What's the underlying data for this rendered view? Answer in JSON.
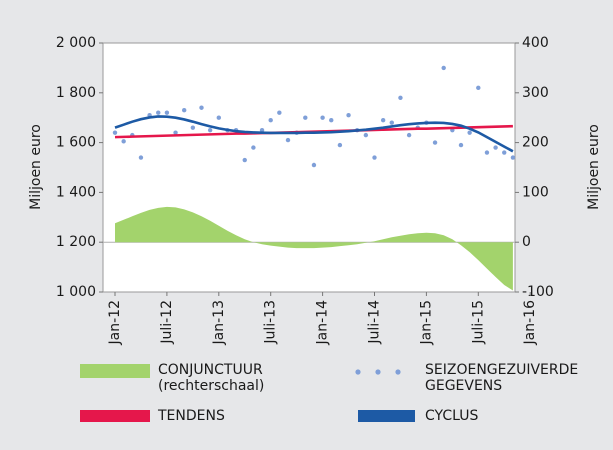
{
  "chart_data": {
    "type": "combo",
    "categories": [
      "Jan-12",
      null,
      null,
      null,
      null,
      null,
      "Juli-12",
      null,
      null,
      null,
      null,
      null,
      "Jan-13",
      null,
      null,
      null,
      null,
      null,
      "Juli-13",
      null,
      null,
      null,
      null,
      null,
      "Jan-14",
      null,
      null,
      null,
      null,
      null,
      "Juli-14",
      null,
      null,
      null,
      null,
      null,
      "Jan-15",
      null,
      null,
      null,
      null,
      null,
      "Juli-15",
      null,
      null,
      null,
      null,
      null,
      "Jan-16"
    ],
    "ylabel": "Miljoen euro",
    "y2label": "Miljoen euro",
    "ylim": [
      1000,
      2000
    ],
    "yticks": [
      {
        "value": 1000,
        "label": "1 000"
      },
      {
        "value": 1200,
        "label": "1 200"
      },
      {
        "value": 1400,
        "label": "1 400"
      },
      {
        "value": 1600,
        "label": "1 600"
      },
      {
        "value": 1800,
        "label": "1 800"
      },
      {
        "value": 2000,
        "label": "2 000"
      }
    ],
    "y2lim": [
      -100,
      400
    ],
    "y2ticks": [
      -100,
      0,
      100,
      200,
      300,
      400
    ],
    "grid": false,
    "series": [
      {
        "name": "CONJUNCTUUR (rechterschaal)",
        "type": "area",
        "axis": "y2",
        "color": "#a3d36c",
        "values": [
          38,
          45,
          52,
          59,
          65,
          69,
          71,
          70,
          66,
          60,
          52,
          43,
          33,
          23,
          14,
          6,
          0,
          -4,
          -7,
          -9,
          -11,
          -12,
          -12,
          -12,
          -11,
          -10,
          -8,
          -6,
          -4,
          -1,
          2,
          6,
          10,
          13,
          16,
          18,
          19,
          18,
          14,
          6,
          -6,
          -20,
          -36,
          -53,
          -70,
          -86,
          -97,
          null,
          null
        ]
      },
      {
        "name": "SEIZOENGEZUIVERDE GEGEVENS",
        "type": "scatter",
        "color": "#7f9fd8",
        "values": [
          1640,
          1605,
          1630,
          1540,
          1710,
          1720,
          1720,
          1640,
          1730,
          1660,
          1740,
          1650,
          1700,
          1650,
          1650,
          1530,
          1580,
          1650,
          1690,
          1720,
          1610,
          1640,
          1700,
          1510,
          1700,
          1690,
          1590,
          1710,
          1650,
          1630,
          1540,
          1690,
          1680,
          1780,
          1630,
          1660,
          1680,
          1600,
          1900,
          1650,
          1590,
          1640,
          1820,
          1560,
          1580,
          1560,
          1540,
          null,
          null
        ]
      },
      {
        "name": "TENDENS",
        "type": "line",
        "color": "#e5174b",
        "values": [
          1622,
          1623,
          1624,
          1625,
          1626,
          1627,
          1628,
          1629,
          1630,
          1631,
          1632,
          1633,
          1634,
          1635,
          1636,
          1636,
          1637,
          1638,
          1639,
          1640,
          1641,
          1642,
          1643,
          1644,
          1645,
          1646,
          1647,
          1648,
          1649,
          1650,
          1651,
          1652,
          1653,
          1654,
          1655,
          1656,
          1656,
          1657,
          1658,
          1659,
          1660,
          1661,
          1662,
          1663,
          1664,
          1665,
          1666,
          null,
          null
        ]
      },
      {
        "name": "CYCLUS",
        "type": "line",
        "color": "#1d5aa5",
        "values": [
          1660,
          1672,
          1684,
          1694,
          1701,
          1705,
          1704,
          1700,
          1693,
          1684,
          1674,
          1665,
          1657,
          1651,
          1646,
          1643,
          1641,
          1640,
          1639,
          1639,
          1639,
          1639,
          1640,
          1640,
          1641,
          1642,
          1644,
          1646,
          1649,
          1652,
          1656,
          1660,
          1665,
          1670,
          1674,
          1677,
          1679,
          1680,
          1679,
          1675,
          1668,
          1656,
          1641,
          1622,
          1603,
          1584,
          1565,
          null,
          null
        ]
      }
    ]
  }
}
